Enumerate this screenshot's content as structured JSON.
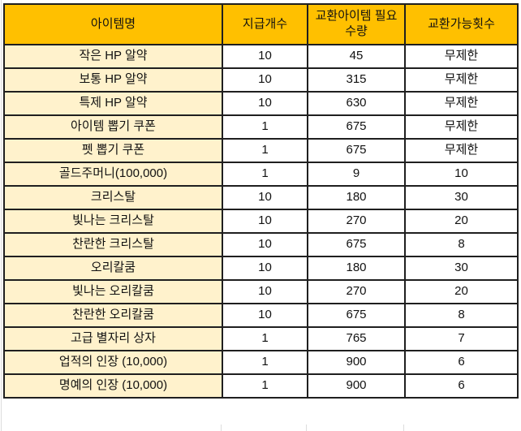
{
  "colors": {
    "header_bg": "#FFC000",
    "item_col_bg": "#FFF2CC",
    "border": "#1F1F1F",
    "text": "#111111"
  },
  "table": {
    "columns": [
      {
        "key": "name",
        "label": "아이템명"
      },
      {
        "key": "qty",
        "label": "지급개수"
      },
      {
        "key": "required",
        "label": "교환아이템 필요 수량"
      },
      {
        "key": "limit",
        "label": "교환가능횟수"
      }
    ],
    "rows": [
      {
        "name": "작은 HP 알약",
        "qty": "10",
        "required": "45",
        "limit": "무제한"
      },
      {
        "name": "보통 HP 알약",
        "qty": "10",
        "required": "315",
        "limit": "무제한"
      },
      {
        "name": "특제 HP 알약",
        "qty": "10",
        "required": "630",
        "limit": "무제한"
      },
      {
        "name": "아이템 뽑기 쿠폰",
        "qty": "1",
        "required": "675",
        "limit": "무제한"
      },
      {
        "name": "펫 뽑기 쿠폰",
        "qty": "1",
        "required": "675",
        "limit": "무제한"
      },
      {
        "name": "골드주머니(100,000)",
        "qty": "1",
        "required": "9",
        "limit": "10"
      },
      {
        "name": "크리스탈",
        "qty": "10",
        "required": "180",
        "limit": "30"
      },
      {
        "name": "빛나는 크리스탈",
        "qty": "10",
        "required": "270",
        "limit": "20"
      },
      {
        "name": "찬란한 크리스탈",
        "qty": "10",
        "required": "675",
        "limit": "8"
      },
      {
        "name": "오리칼쿰",
        "qty": "10",
        "required": "180",
        "limit": "30"
      },
      {
        "name": "빛나는 오리칼쿰",
        "qty": "10",
        "required": "270",
        "limit": "20"
      },
      {
        "name": "찬란한 오리칼쿰",
        "qty": "10",
        "required": "675",
        "limit": "8"
      },
      {
        "name": "고급 별자리 상자",
        "qty": "1",
        "required": "765",
        "limit": "7"
      },
      {
        "name": "업적의 인장 (10,000)",
        "qty": "1",
        "required": "900",
        "limit": "6"
      },
      {
        "name": "명예의 인장 (10,000)",
        "qty": "1",
        "required": "900",
        "limit": "6"
      }
    ]
  }
}
